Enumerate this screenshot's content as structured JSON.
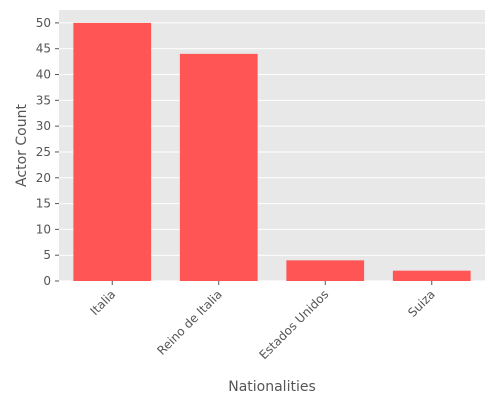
{
  "chart_data": {
    "type": "bar",
    "title": "",
    "xlabel": "Nationalities",
    "ylabel": "Actor Count",
    "categories": [
      "Italia",
      "Reino de Italia",
      "Estados Unidos",
      "Suiza"
    ],
    "values": [
      50,
      44,
      4,
      2
    ],
    "ylim": [
      0,
      52.5
    ],
    "yticks": [
      0,
      5,
      10,
      15,
      20,
      25,
      30,
      35,
      40,
      45,
      50
    ],
    "grid": true,
    "x_tick_rotation_deg": 45,
    "colors": {
      "bar": "#ff5555",
      "plot_background": "#e8e8e8",
      "grid": "#ffffff",
      "text": "#555555"
    }
  }
}
